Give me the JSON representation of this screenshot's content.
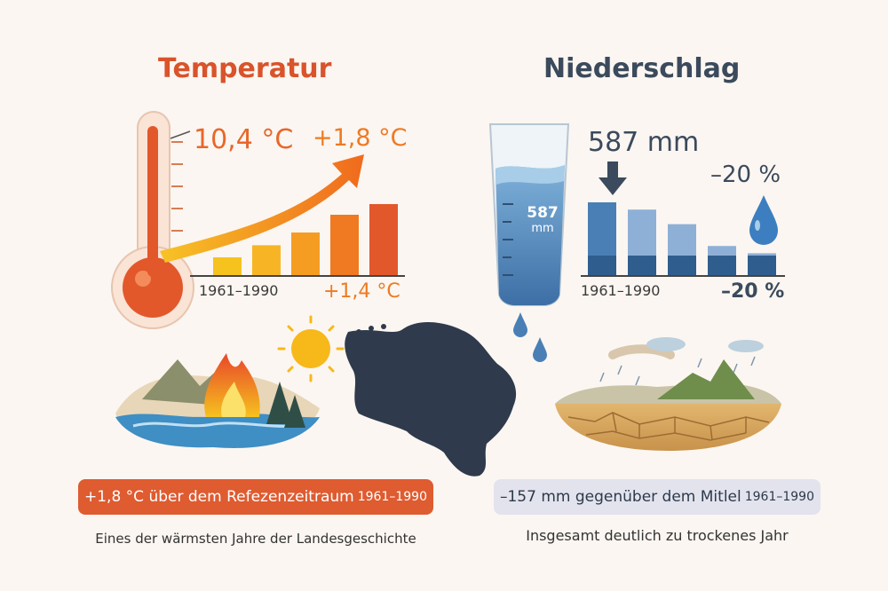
{
  "temperature": {
    "title": "Temperatur",
    "current_value": "10,4 °C",
    "delta_top": "+1,8 °C",
    "delta_bottom": "+1,4 °C",
    "period_label": "1961–1990",
    "bars_relative": [
      0.25,
      0.42,
      0.6,
      0.85,
      1.0
    ],
    "summary_value": "+1,8 °C über dem Refezenzeitraum",
    "summary_period": "1961–1990",
    "caption": "Eines der wärmsten Jahre der Landesgeschichte",
    "colors": {
      "accent": "#d9532b",
      "orange": "#ef7a22",
      "yellow": "#f6c21e"
    }
  },
  "precipitation": {
    "title": "Niederschlag",
    "current_value": "587 mm",
    "glass_value": "587",
    "glass_unit": "mm",
    "pct_top": "–20 %",
    "pct_bottom": "–20 %",
    "period_label": "1961–1990",
    "bars_relative": [
      1.0,
      0.9,
      0.7,
      0.4,
      0.3
    ],
    "summary_value": "–157 mm gegenüber dem Mitlel",
    "summary_period": "1961–1990",
    "caption": "Insgesamt deutlich zu trockenes Jahr",
    "colors": {
      "accent": "#3b4a5c",
      "blue": "#4a7fb5",
      "pill": "#e3e3ee"
    }
  },
  "icons": [
    "thermometer-icon",
    "sun-icon",
    "fire-icon",
    "water-glass-icon",
    "drop-icon",
    "map-icon",
    "cracked-earth-icon"
  ]
}
